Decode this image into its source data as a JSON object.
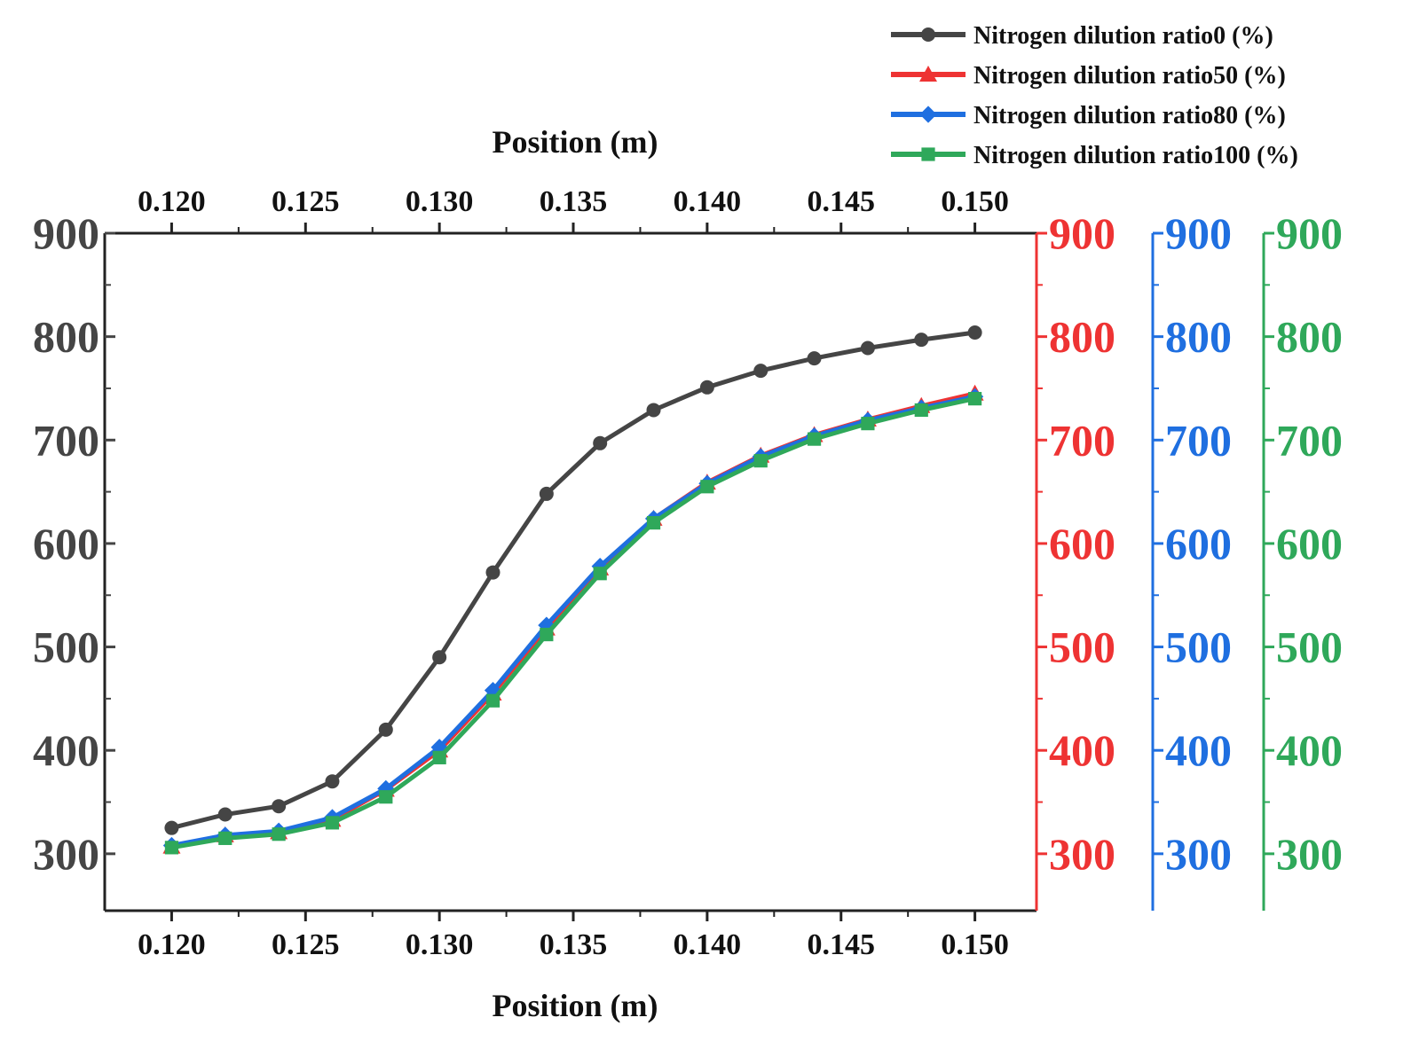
{
  "chart_data": {
    "type": "line",
    "xlabel_bottom": "Position (m)",
    "xlabel_top": "Position (m)",
    "x_ticks": [
      "0.120",
      "0.125",
      "0.130",
      "0.135",
      "0.140",
      "0.145",
      "0.150"
    ],
    "x_tick_values": [
      0.12,
      0.125,
      0.13,
      0.135,
      0.14,
      0.145,
      0.15
    ],
    "xlim": [
      0.1175,
      0.1523
    ],
    "ylim": [
      245,
      900
    ],
    "y_ticks": [
      "300",
      "400",
      "500",
      "600",
      "700",
      "800",
      "900"
    ],
    "y_tick_values": [
      300,
      400,
      500,
      600,
      700,
      800,
      900
    ],
    "x": [
      0.12,
      0.122,
      0.124,
      0.126,
      0.128,
      0.13,
      0.132,
      0.134,
      0.136,
      0.138,
      0.14,
      0.142,
      0.144,
      0.146,
      0.148,
      0.15
    ],
    "series": [
      {
        "name": "Nitrogen dilution ratio0 (%)",
        "color": "#454545",
        "marker": "circle",
        "values": [
          325,
          338,
          346,
          370,
          420,
          490,
          572,
          648,
          697,
          729,
          751,
          767,
          779,
          789,
          797,
          804
        ]
      },
      {
        "name": "Nitrogen dilution ratio50 (%)",
        "color": "#ee3333",
        "marker": "triangle",
        "values": [
          307,
          318,
          321,
          333,
          362,
          400,
          455,
          518,
          576,
          624,
          659,
          685,
          705,
          720,
          733,
          745
        ]
      },
      {
        "name": "Nitrogen dilution ratio80 (%)",
        "color": "#1f6fe0",
        "marker": "diamond",
        "values": [
          308,
          318,
          322,
          335,
          363,
          403,
          458,
          521,
          578,
          624,
          658,
          684,
          704,
          719,
          731,
          742
        ]
      },
      {
        "name": "Nitrogen dilution ratio100 (%)",
        "color": "#2fa85a",
        "marker": "square",
        "values": [
          306,
          315,
          319,
          330,
          355,
          393,
          448,
          512,
          571,
          620,
          655,
          680,
          701,
          716,
          729,
          740
        ]
      }
    ],
    "y_axes": [
      {
        "position": "left",
        "color": "#454545"
      },
      {
        "position": "right-1",
        "color": "#ee3333"
      },
      {
        "position": "right-2",
        "color": "#1f6fe0"
      },
      {
        "position": "right-3",
        "color": "#2fa85a"
      }
    ],
    "grid": false,
    "legend_position": "top-right"
  }
}
